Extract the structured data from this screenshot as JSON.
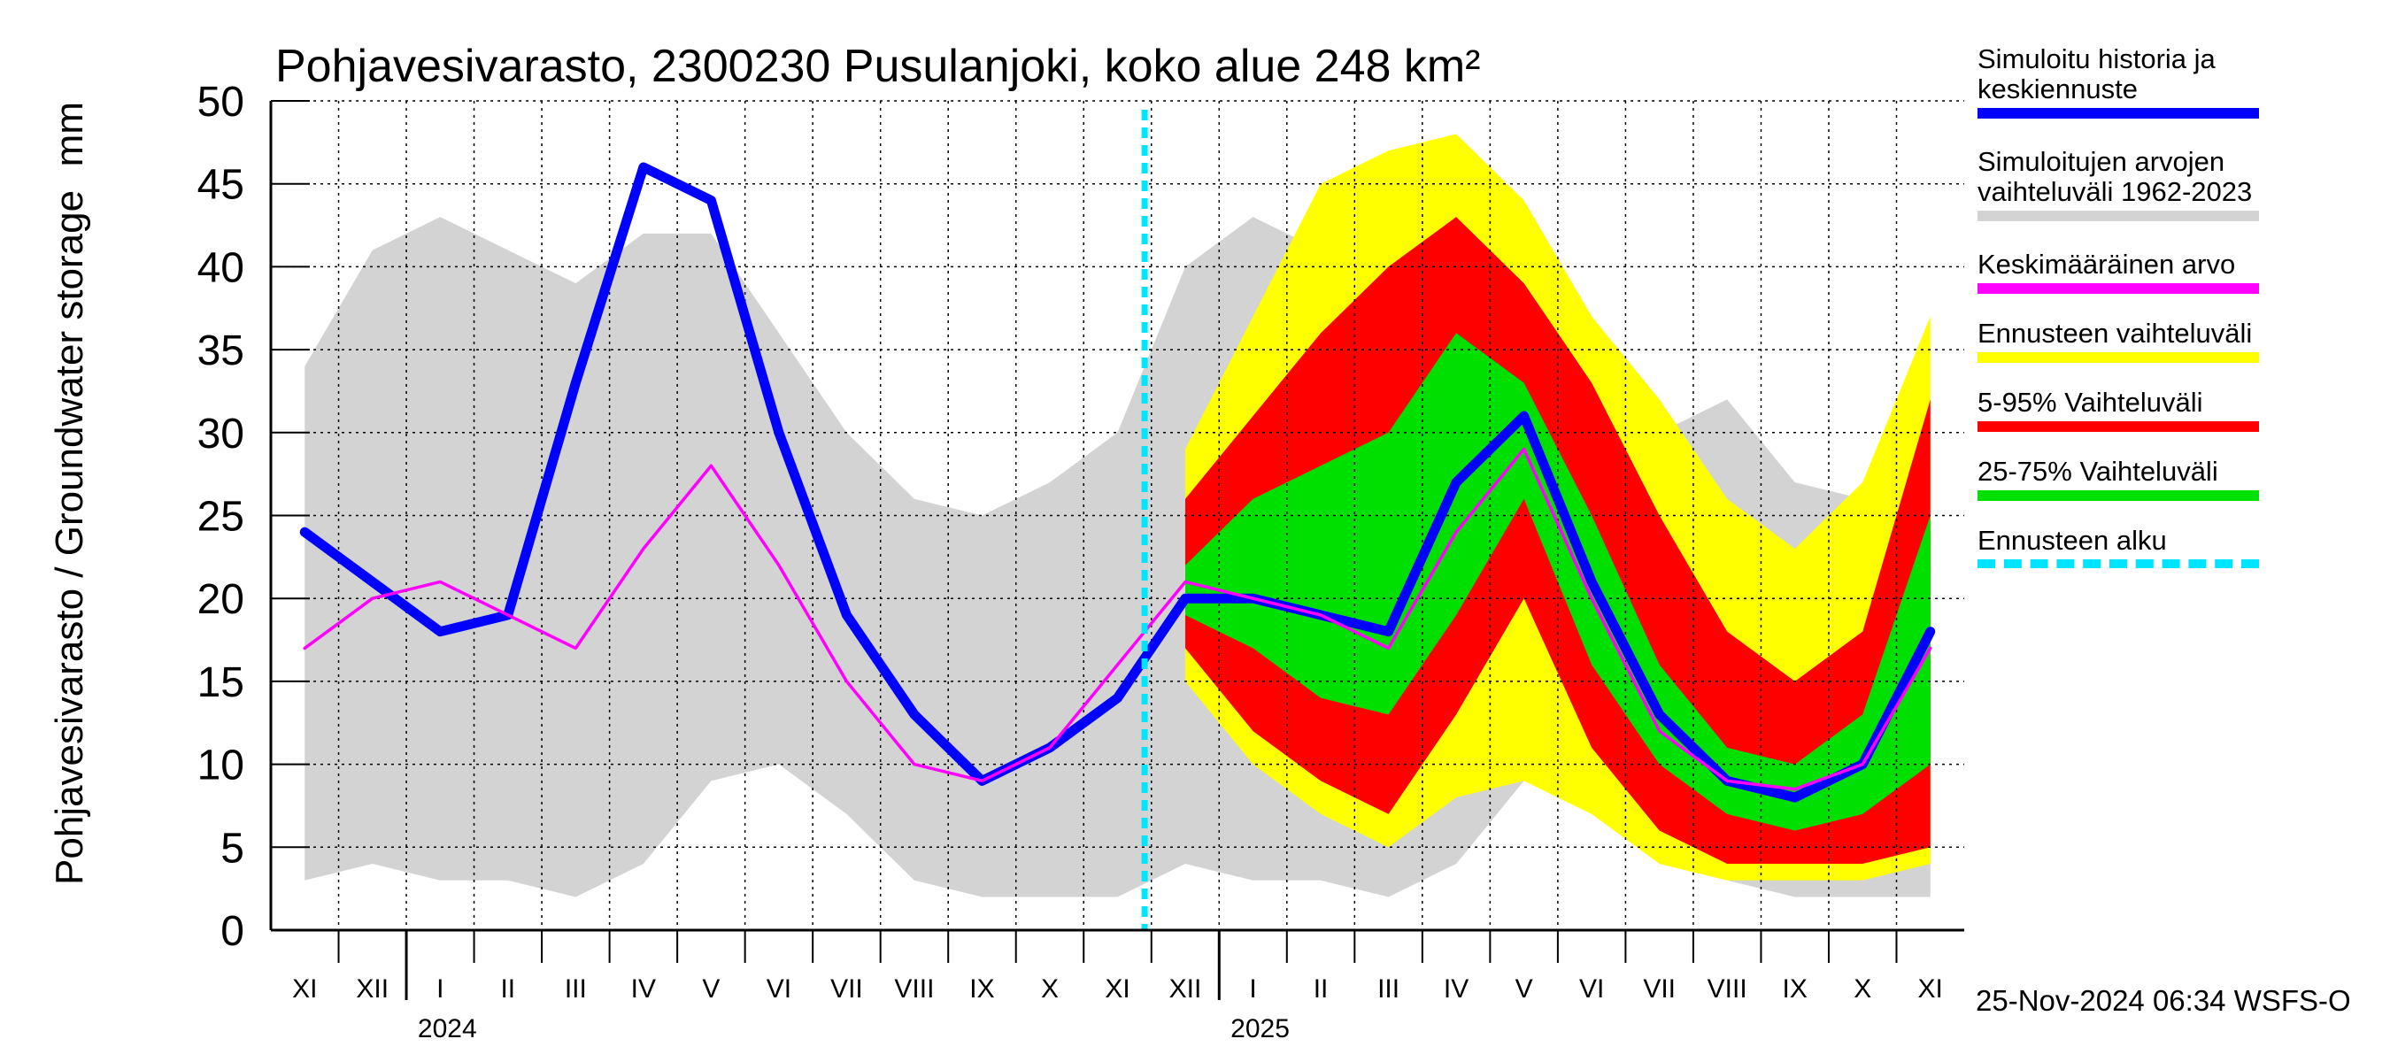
{
  "chart_data": {
    "type": "line",
    "title": "Pohjavesivarasto, 2300230 Pusulanjoki, koko alue 248 km²",
    "ylabel": "Pohjavesivarasto / Groundwater storage",
    "yunit": "mm",
    "footer": "25-Nov-2024 06:34 WSFS-O",
    "categories": [
      "XI",
      "XII",
      "I",
      "II",
      "III",
      "IV",
      "V",
      "VI",
      "VII",
      "VIII",
      "IX",
      "X",
      "XI",
      "XII",
      "I",
      "II",
      "III",
      "IV",
      "V",
      "VI",
      "VII",
      "VIII",
      "IX",
      "X",
      "XI"
    ],
    "years": [
      "2024",
      "2025"
    ],
    "ylim": [
      0,
      50
    ],
    "yticks": [
      0,
      5,
      10,
      15,
      20,
      25,
      30,
      35,
      40,
      45,
      50
    ],
    "grid": true,
    "bands": [
      {
        "name": "Simuloitujen arvojen vaihteluväli 1962-2023",
        "color": "#d3d3d3",
        "lower": [
          3,
          4,
          3,
          3,
          2,
          4,
          9,
          10,
          7,
          3,
          2,
          2,
          2,
          4,
          3,
          3,
          2,
          4,
          9,
          10,
          7,
          3,
          2,
          2,
          2
        ],
        "upper": [
          34,
          41,
          43,
          41,
          39,
          42,
          42,
          36,
          30,
          26,
          25,
          27,
          30,
          40,
          43,
          41,
          39,
          42,
          42,
          36,
          30,
          32,
          27,
          26,
          30
        ]
      },
      {
        "name": "Ennusteen vaihteluväli",
        "color": "#ffff00",
        "lower": [
          null,
          null,
          null,
          null,
          null,
          null,
          null,
          null,
          null,
          null,
          null,
          null,
          null,
          15,
          10,
          7,
          5,
          8,
          9,
          7,
          4,
          3,
          3,
          3,
          4
        ],
        "upper": [
          null,
          null,
          null,
          null,
          null,
          null,
          null,
          null,
          null,
          null,
          null,
          null,
          null,
          29,
          37,
          45,
          47,
          48,
          44,
          37,
          32,
          26,
          23,
          27,
          37
        ]
      },
      {
        "name": "5-95% Vaihteluväli",
        "color": "#ff0000",
        "lower": [
          null,
          null,
          null,
          null,
          null,
          null,
          null,
          null,
          null,
          null,
          null,
          null,
          null,
          17,
          12,
          9,
          7,
          13,
          20,
          11,
          6,
          4,
          4,
          4,
          5
        ],
        "upper": [
          null,
          null,
          null,
          null,
          null,
          null,
          null,
          null,
          null,
          null,
          null,
          null,
          null,
          26,
          31,
          36,
          40,
          43,
          39,
          33,
          25,
          18,
          15,
          18,
          32
        ]
      },
      {
        "name": "25-75% Vaihteluväli",
        "color": "#00e000",
        "lower": [
          null,
          null,
          null,
          null,
          null,
          null,
          null,
          null,
          null,
          null,
          null,
          null,
          null,
          19,
          17,
          14,
          13,
          19,
          26,
          16,
          10,
          7,
          6,
          7,
          10
        ],
        "upper": [
          null,
          null,
          null,
          null,
          null,
          null,
          null,
          null,
          null,
          null,
          null,
          null,
          null,
          22,
          26,
          28,
          30,
          36,
          33,
          25,
          16,
          11,
          10,
          13,
          25
        ]
      }
    ],
    "lines": [
      {
        "name": "Simuloitu historia ja keskiennuste",
        "color": "#0000ff",
        "values": [
          24,
          21,
          18,
          19,
          33,
          46,
          44,
          30,
          19,
          13,
          9,
          11,
          14,
          20,
          20,
          19,
          18,
          27,
          31,
          21,
          13,
          9,
          8,
          10,
          18
        ]
      },
      {
        "name": "Keskimääräinen arvo",
        "color": "#ff00ff",
        "values": [
          17,
          20,
          21,
          19,
          17,
          23,
          28,
          22,
          15,
          10,
          9,
          11,
          16,
          21,
          20,
          19,
          17,
          24,
          29,
          20,
          12,
          9,
          8.5,
          10,
          17
        ]
      }
    ],
    "forecast_start": {
      "name": "Ennusteen alku",
      "color": "#00e5ff"
    }
  }
}
